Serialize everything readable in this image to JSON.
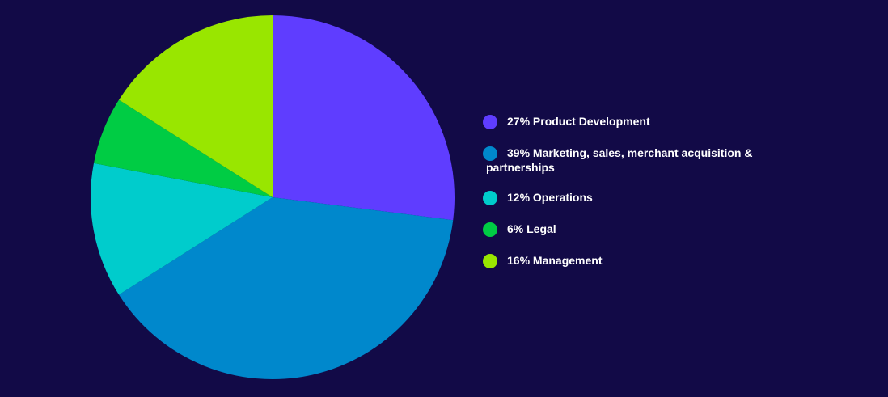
{
  "chart_data": {
    "type": "pie",
    "title": "",
    "slices": [
      {
        "label": "27% Product Development",
        "value": 27,
        "color": "#5f3dff"
      },
      {
        "label": "39% Marketing, sales, merchant acquisition & partnerships",
        "value": 39,
        "color": "#0088cc"
      },
      {
        "label": "12% Operations",
        "value": 12,
        "color": "#00cccc"
      },
      {
        "label": "6% Legal",
        "value": 6,
        "color": "#00cc44"
      },
      {
        "label": "16% Management",
        "value": 16,
        "color": "#99e600"
      }
    ],
    "legend_position": "right"
  },
  "legend": {
    "items": [
      {
        "label": "27% Product Development",
        "color": "#5f3dff"
      },
      {
        "label_line1": "39% Marketing, sales, merchant acquisition &",
        "label_line2": "partnerships",
        "color": "#0088cc"
      },
      {
        "label": "12% Operations",
        "color": "#00cccc"
      },
      {
        "label": "6% Legal",
        "color": "#00cc44"
      },
      {
        "label": "16% Management",
        "color": "#99e600"
      }
    ]
  }
}
